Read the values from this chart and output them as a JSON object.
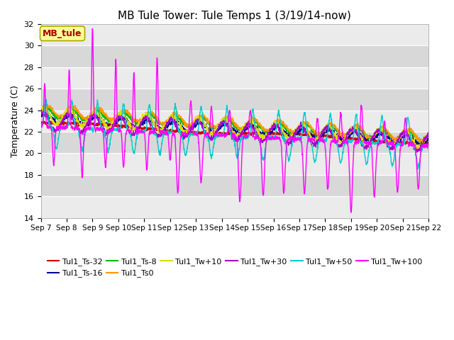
{
  "title": "MB Tule Tower: Tule Temps 1 (3/19/14-now)",
  "ylabel": "Temperature (C)",
  "ylim": [
    14,
    32
  ],
  "yticks": [
    14,
    16,
    18,
    20,
    22,
    24,
    26,
    28,
    30,
    32
  ],
  "xtick_labels": [
    "Sep 7",
    "Sep 8",
    "Sep 9",
    "Sep 10",
    "Sep 11",
    "Sep 12",
    "Sep 13",
    "Sep 14",
    "Sep 15",
    "Sep 16",
    "Sep 17",
    "Sep 18",
    "Sep 19",
    "Sep 20",
    "Sep 21",
    "Sep 22"
  ],
  "annotation_box": "MB_tule",
  "annotation_box_color": "#aa0000",
  "annotation_box_bg": "#ffff99",
  "annotation_box_border": "#aaaa00",
  "series_colors": {
    "Tul1_Ts-32": "#cc0000",
    "Tul1_Ts-16": "#000099",
    "Tul1_Ts-8": "#00bb00",
    "Tul1_Ts0": "#ff9900",
    "Tul1_Tw+10": "#dddd00",
    "Tul1_Tw+30": "#aa00cc",
    "Tul1_Tw+50": "#00cccc",
    "Tul1_Tw+100": "#ff00ff"
  },
  "background_color": "#ffffff",
  "plot_bg_color": "#e0e0e0",
  "band_light": "#ebebeb",
  "band_dark": "#d8d8d8",
  "num_days": 15
}
